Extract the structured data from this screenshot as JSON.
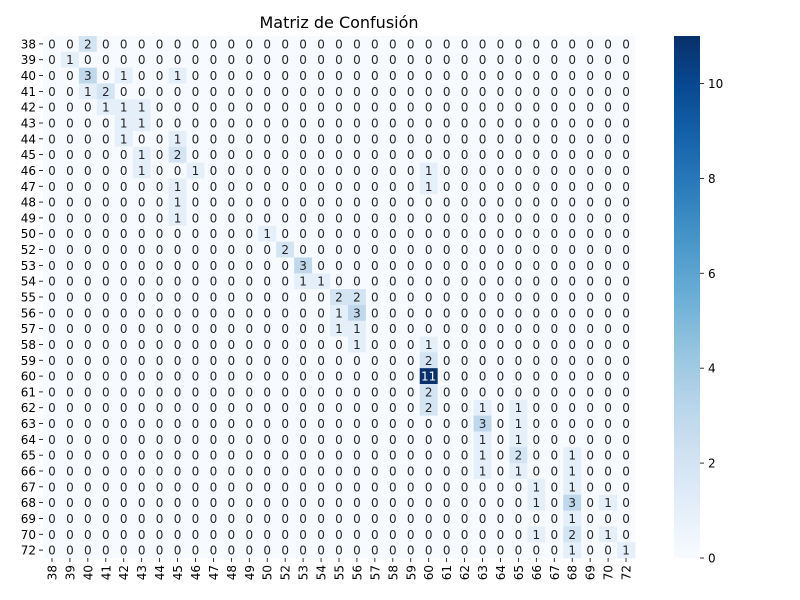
{
  "chart_data": {
    "type": "heatmap",
    "title": "Matriz de Confusión",
    "xlabel": "",
    "ylabel": "",
    "labels": [
      "38",
      "39",
      "40",
      "41",
      "42",
      "43",
      "44",
      "45",
      "46",
      "47",
      "48",
      "49",
      "50",
      "52",
      "53",
      "54",
      "55",
      "56",
      "57",
      "58",
      "59",
      "60",
      "61",
      "62",
      "63",
      "64",
      "65",
      "66",
      "67",
      "68",
      "69",
      "70",
      "72"
    ],
    "matrix": [
      [
        0,
        0,
        2,
        0,
        0,
        0,
        0,
        0,
        0,
        0,
        0,
        0,
        0,
        0,
        0,
        0,
        0,
        0,
        0,
        0,
        0,
        0,
        0,
        0,
        0,
        0,
        0,
        0,
        0,
        0,
        0,
        0,
        0
      ],
      [
        0,
        1,
        0,
        0,
        0,
        0,
        0,
        0,
        0,
        0,
        0,
        0,
        0,
        0,
        0,
        0,
        0,
        0,
        0,
        0,
        0,
        0,
        0,
        0,
        0,
        0,
        0,
        0,
        0,
        0,
        0,
        0,
        0
      ],
      [
        0,
        0,
        3,
        0,
        1,
        0,
        0,
        1,
        0,
        0,
        0,
        0,
        0,
        0,
        0,
        0,
        0,
        0,
        0,
        0,
        0,
        0,
        0,
        0,
        0,
        0,
        0,
        0,
        0,
        0,
        0,
        0,
        0
      ],
      [
        0,
        0,
        1,
        2,
        0,
        0,
        0,
        0,
        0,
        0,
        0,
        0,
        0,
        0,
        0,
        0,
        0,
        0,
        0,
        0,
        0,
        0,
        0,
        0,
        0,
        0,
        0,
        0,
        0,
        0,
        0,
        0,
        0
      ],
      [
        0,
        0,
        0,
        1,
        1,
        1,
        0,
        0,
        0,
        0,
        0,
        0,
        0,
        0,
        0,
        0,
        0,
        0,
        0,
        0,
        0,
        0,
        0,
        0,
        0,
        0,
        0,
        0,
        0,
        0,
        0,
        0,
        0
      ],
      [
        0,
        0,
        0,
        0,
        1,
        1,
        0,
        0,
        0,
        0,
        0,
        0,
        0,
        0,
        0,
        0,
        0,
        0,
        0,
        0,
        0,
        0,
        0,
        0,
        0,
        0,
        0,
        0,
        0,
        0,
        0,
        0,
        0
      ],
      [
        0,
        0,
        0,
        0,
        1,
        0,
        0,
        1,
        0,
        0,
        0,
        0,
        0,
        0,
        0,
        0,
        0,
        0,
        0,
        0,
        0,
        0,
        0,
        0,
        0,
        0,
        0,
        0,
        0,
        0,
        0,
        0,
        0
      ],
      [
        0,
        0,
        0,
        0,
        0,
        1,
        0,
        2,
        0,
        0,
        0,
        0,
        0,
        0,
        0,
        0,
        0,
        0,
        0,
        0,
        0,
        0,
        0,
        0,
        0,
        0,
        0,
        0,
        0,
        0,
        0,
        0,
        0
      ],
      [
        0,
        0,
        0,
        0,
        0,
        1,
        0,
        0,
        1,
        0,
        0,
        0,
        0,
        0,
        0,
        0,
        0,
        0,
        0,
        0,
        0,
        1,
        0,
        0,
        0,
        0,
        0,
        0,
        0,
        0,
        0,
        0,
        0
      ],
      [
        0,
        0,
        0,
        0,
        0,
        0,
        0,
        1,
        0,
        0,
        0,
        0,
        0,
        0,
        0,
        0,
        0,
        0,
        0,
        0,
        0,
        1,
        0,
        0,
        0,
        0,
        0,
        0,
        0,
        0,
        0,
        0,
        0
      ],
      [
        0,
        0,
        0,
        0,
        0,
        0,
        0,
        1,
        0,
        0,
        0,
        0,
        0,
        0,
        0,
        0,
        0,
        0,
        0,
        0,
        0,
        0,
        0,
        0,
        0,
        0,
        0,
        0,
        0,
        0,
        0,
        0,
        0
      ],
      [
        0,
        0,
        0,
        0,
        0,
        0,
        0,
        1,
        0,
        0,
        0,
        0,
        0,
        0,
        0,
        0,
        0,
        0,
        0,
        0,
        0,
        0,
        0,
        0,
        0,
        0,
        0,
        0,
        0,
        0,
        0,
        0,
        0
      ],
      [
        0,
        0,
        0,
        0,
        0,
        0,
        0,
        0,
        0,
        0,
        0,
        0,
        1,
        0,
        0,
        0,
        0,
        0,
        0,
        0,
        0,
        0,
        0,
        0,
        0,
        0,
        0,
        0,
        0,
        0,
        0,
        0,
        0
      ],
      [
        0,
        0,
        0,
        0,
        0,
        0,
        0,
        0,
        0,
        0,
        0,
        0,
        0,
        2,
        0,
        0,
        0,
        0,
        0,
        0,
        0,
        0,
        0,
        0,
        0,
        0,
        0,
        0,
        0,
        0,
        0,
        0,
        0
      ],
      [
        0,
        0,
        0,
        0,
        0,
        0,
        0,
        0,
        0,
        0,
        0,
        0,
        0,
        0,
        3,
        0,
        0,
        0,
        0,
        0,
        0,
        0,
        0,
        0,
        0,
        0,
        0,
        0,
        0,
        0,
        0,
        0,
        0
      ],
      [
        0,
        0,
        0,
        0,
        0,
        0,
        0,
        0,
        0,
        0,
        0,
        0,
        0,
        0,
        1,
        1,
        0,
        0,
        0,
        0,
        0,
        0,
        0,
        0,
        0,
        0,
        0,
        0,
        0,
        0,
        0,
        0,
        0
      ],
      [
        0,
        0,
        0,
        0,
        0,
        0,
        0,
        0,
        0,
        0,
        0,
        0,
        0,
        0,
        0,
        0,
        2,
        2,
        0,
        0,
        0,
        0,
        0,
        0,
        0,
        0,
        0,
        0,
        0,
        0,
        0,
        0,
        0
      ],
      [
        0,
        0,
        0,
        0,
        0,
        0,
        0,
        0,
        0,
        0,
        0,
        0,
        0,
        0,
        0,
        0,
        1,
        3,
        0,
        0,
        0,
        0,
        0,
        0,
        0,
        0,
        0,
        0,
        0,
        0,
        0,
        0,
        0
      ],
      [
        0,
        0,
        0,
        0,
        0,
        0,
        0,
        0,
        0,
        0,
        0,
        0,
        0,
        0,
        0,
        0,
        1,
        1,
        0,
        0,
        0,
        0,
        0,
        0,
        0,
        0,
        0,
        0,
        0,
        0,
        0,
        0,
        0
      ],
      [
        0,
        0,
        0,
        0,
        0,
        0,
        0,
        0,
        0,
        0,
        0,
        0,
        0,
        0,
        0,
        0,
        0,
        1,
        0,
        0,
        0,
        1,
        0,
        0,
        0,
        0,
        0,
        0,
        0,
        0,
        0,
        0,
        0
      ],
      [
        0,
        0,
        0,
        0,
        0,
        0,
        0,
        0,
        0,
        0,
        0,
        0,
        0,
        0,
        0,
        0,
        0,
        0,
        0,
        0,
        0,
        2,
        0,
        0,
        0,
        0,
        0,
        0,
        0,
        0,
        0,
        0,
        0
      ],
      [
        0,
        0,
        0,
        0,
        0,
        0,
        0,
        0,
        0,
        0,
        0,
        0,
        0,
        0,
        0,
        0,
        0,
        0,
        0,
        0,
        0,
        11,
        0,
        0,
        0,
        0,
        0,
        0,
        0,
        0,
        0,
        0,
        0
      ],
      [
        0,
        0,
        0,
        0,
        0,
        0,
        0,
        0,
        0,
        0,
        0,
        0,
        0,
        0,
        0,
        0,
        0,
        0,
        0,
        0,
        0,
        2,
        0,
        0,
        0,
        0,
        0,
        0,
        0,
        0,
        0,
        0,
        0
      ],
      [
        0,
        0,
        0,
        0,
        0,
        0,
        0,
        0,
        0,
        0,
        0,
        0,
        0,
        0,
        0,
        0,
        0,
        0,
        0,
        0,
        0,
        2,
        0,
        0,
        1,
        0,
        1,
        0,
        0,
        0,
        0,
        0,
        0
      ],
      [
        0,
        0,
        0,
        0,
        0,
        0,
        0,
        0,
        0,
        0,
        0,
        0,
        0,
        0,
        0,
        0,
        0,
        0,
        0,
        0,
        0,
        0,
        0,
        0,
        3,
        0,
        1,
        0,
        0,
        0,
        0,
        0,
        0
      ],
      [
        0,
        0,
        0,
        0,
        0,
        0,
        0,
        0,
        0,
        0,
        0,
        0,
        0,
        0,
        0,
        0,
        0,
        0,
        0,
        0,
        0,
        0,
        0,
        0,
        1,
        0,
        1,
        0,
        0,
        0,
        0,
        0,
        0
      ],
      [
        0,
        0,
        0,
        0,
        0,
        0,
        0,
        0,
        0,
        0,
        0,
        0,
        0,
        0,
        0,
        0,
        0,
        0,
        0,
        0,
        0,
        0,
        0,
        0,
        1,
        0,
        2,
        0,
        0,
        1,
        0,
        0,
        0
      ],
      [
        0,
        0,
        0,
        0,
        0,
        0,
        0,
        0,
        0,
        0,
        0,
        0,
        0,
        0,
        0,
        0,
        0,
        0,
        0,
        0,
        0,
        0,
        0,
        0,
        1,
        0,
        1,
        0,
        0,
        1,
        0,
        0,
        0
      ],
      [
        0,
        0,
        0,
        0,
        0,
        0,
        0,
        0,
        0,
        0,
        0,
        0,
        0,
        0,
        0,
        0,
        0,
        0,
        0,
        0,
        0,
        0,
        0,
        0,
        0,
        0,
        0,
        1,
        0,
        1,
        0,
        0,
        0
      ],
      [
        0,
        0,
        0,
        0,
        0,
        0,
        0,
        0,
        0,
        0,
        0,
        0,
        0,
        0,
        0,
        0,
        0,
        0,
        0,
        0,
        0,
        0,
        0,
        0,
        0,
        0,
        0,
        1,
        0,
        3,
        0,
        1,
        0
      ],
      [
        0,
        0,
        0,
        0,
        0,
        0,
        0,
        0,
        0,
        0,
        0,
        0,
        0,
        0,
        0,
        0,
        0,
        0,
        0,
        0,
        0,
        0,
        0,
        0,
        0,
        0,
        0,
        0,
        0,
        1,
        0,
        0,
        0
      ],
      [
        0,
        0,
        0,
        0,
        0,
        0,
        0,
        0,
        0,
        0,
        0,
        0,
        0,
        0,
        0,
        0,
        0,
        0,
        0,
        0,
        0,
        0,
        0,
        0,
        0,
        0,
        0,
        1,
        0,
        2,
        0,
        1,
        0
      ],
      [
        0,
        0,
        0,
        0,
        0,
        0,
        0,
        0,
        0,
        0,
        0,
        0,
        0,
        0,
        0,
        0,
        0,
        0,
        0,
        0,
        0,
        0,
        0,
        0,
        0,
        0,
        0,
        0,
        0,
        1,
        0,
        0,
        1
      ]
    ],
    "colorbar": {
      "min": 0,
      "max": 11,
      "ticks": [
        0,
        2,
        4,
        6,
        8,
        10
      ],
      "colormap": "Blues",
      "low_color": "#f7fbff",
      "high_color": "#08306b"
    },
    "grid": false,
    "legend": "colorbar-right"
  }
}
